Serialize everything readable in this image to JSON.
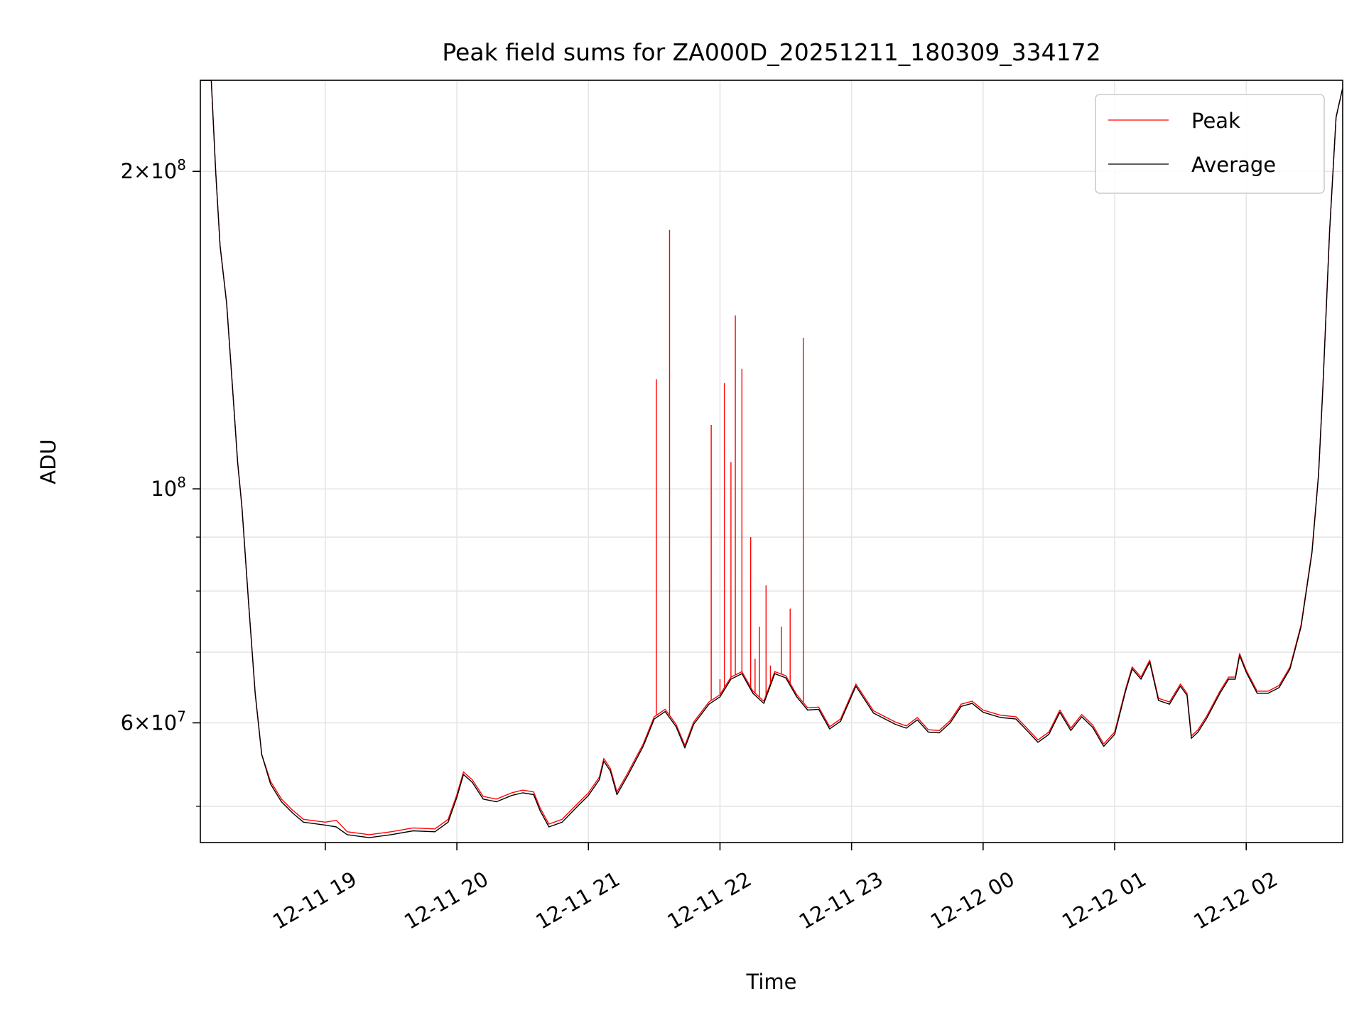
{
  "chart_data": {
    "type": "line",
    "title": "Peak field sums for ZA000D_20251211_180309_334172",
    "xlabel": "Time",
    "ylabel": "ADU",
    "y_scale": "log",
    "ylim": [
      46200000,
      244000000
    ],
    "xlim": [
      "2025-12-11 18:03",
      "2025-12-12 02:44"
    ],
    "grid": true,
    "legend_placement": "top-right",
    "x_ticks": [
      {
        "t": "2025-12-11 19:00",
        "label": "12-11 19"
      },
      {
        "t": "2025-12-11 20:00",
        "label": "12-11 20"
      },
      {
        "t": "2025-12-11 21:00",
        "label": "12-11 21"
      },
      {
        "t": "2025-12-11 22:00",
        "label": "12-11 22"
      },
      {
        "t": "2025-12-11 23:00",
        "label": "12-11 23"
      },
      {
        "t": "2025-12-12 00:00",
        "label": "12-12 00"
      },
      {
        "t": "2025-12-12 01:00",
        "label": "12-12 01"
      },
      {
        "t": "2025-12-12 02:00",
        "label": "12-12 02"
      }
    ],
    "y_major_ticks": [
      {
        "value": 60000000,
        "mantissa": "6",
        "exponent": "7"
      },
      {
        "value": 100000000,
        "mantissa": "",
        "exponent": "8"
      },
      {
        "value": 200000000,
        "mantissa": "2",
        "exponent": "8"
      }
    ],
    "y_minor_ticks": [
      50000000,
      70000000,
      80000000,
      90000000
    ],
    "series": [
      {
        "name": "Average",
        "color": "#000000",
        "points": [
          [
            "2025-12-11 18:03",
            244000000
          ],
          [
            "2025-12-11 18:08",
            244000000
          ],
          [
            "2025-12-11 18:10",
            200000000
          ],
          [
            "2025-12-11 18:12",
            170000000
          ],
          [
            "2025-12-11 18:15",
            150000000
          ],
          [
            "2025-12-11 18:18",
            122000000
          ],
          [
            "2025-12-11 18:20",
            106000000
          ],
          [
            "2025-12-11 18:22",
            96000000
          ],
          [
            "2025-12-11 18:25",
            78000000
          ],
          [
            "2025-12-11 18:28",
            64000000
          ],
          [
            "2025-12-11 18:31",
            56000000
          ],
          [
            "2025-12-11 18:35",
            52500000
          ],
          [
            "2025-12-11 18:40",
            50500000
          ],
          [
            "2025-12-11 18:45",
            49300000
          ],
          [
            "2025-12-11 18:50",
            48300000
          ],
          [
            "2025-12-11 19:00",
            48000000
          ],
          [
            "2025-12-11 19:05",
            47800000
          ],
          [
            "2025-12-11 19:10",
            47000000
          ],
          [
            "2025-12-11 19:20",
            46700000
          ],
          [
            "2025-12-11 19:30",
            47000000
          ],
          [
            "2025-12-11 19:40",
            47400000
          ],
          [
            "2025-12-11 19:50",
            47300000
          ],
          [
            "2025-12-11 19:56",
            48300000
          ],
          [
            "2025-12-11 20:00",
            51000000
          ],
          [
            "2025-12-11 20:03",
            53600000
          ],
          [
            "2025-12-11 20:07",
            52700000
          ],
          [
            "2025-12-11 20:12",
            50800000
          ],
          [
            "2025-12-11 20:18",
            50500000
          ],
          [
            "2025-12-11 20:25",
            51200000
          ],
          [
            "2025-12-11 20:30",
            51500000
          ],
          [
            "2025-12-11 20:35",
            51300000
          ],
          [
            "2025-12-11 20:38",
            49500000
          ],
          [
            "2025-12-11 20:42",
            47800000
          ],
          [
            "2025-12-11 20:48",
            48300000
          ],
          [
            "2025-12-11 20:55",
            50000000
          ],
          [
            "2025-12-11 21:00",
            51200000
          ],
          [
            "2025-12-11 21:05",
            53000000
          ],
          [
            "2025-12-11 21:07",
            55200000
          ],
          [
            "2025-12-11 21:10",
            54000000
          ],
          [
            "2025-12-11 21:13",
            51300000
          ],
          [
            "2025-12-11 21:18",
            53500000
          ],
          [
            "2025-12-11 21:25",
            57000000
          ],
          [
            "2025-12-11 21:30",
            60500000
          ],
          [
            "2025-12-11 21:35",
            61500000
          ],
          [
            "2025-12-11 21:40",
            59500000
          ],
          [
            "2025-12-11 21:44",
            56800000
          ],
          [
            "2025-12-11 21:48",
            59800000
          ],
          [
            "2025-12-11 21:55",
            62500000
          ],
          [
            "2025-12-11 22:00",
            63500000
          ],
          [
            "2025-12-11 22:05",
            66000000
          ],
          [
            "2025-12-11 22:10",
            66800000
          ],
          [
            "2025-12-11 22:15",
            64000000
          ],
          [
            "2025-12-11 22:20",
            62600000
          ],
          [
            "2025-12-11 22:25",
            66800000
          ],
          [
            "2025-12-11 22:30",
            66200000
          ],
          [
            "2025-12-11 22:35",
            63500000
          ],
          [
            "2025-12-11 22:40",
            61700000
          ],
          [
            "2025-12-11 22:45",
            61800000
          ],
          [
            "2025-12-11 22:50",
            59200000
          ],
          [
            "2025-12-11 22:55",
            60200000
          ],
          [
            "2025-12-11 23:02",
            65000000
          ],
          [
            "2025-12-11 23:10",
            61300000
          ],
          [
            "2025-12-11 23:20",
            59800000
          ],
          [
            "2025-12-11 23:25",
            59300000
          ],
          [
            "2025-12-11 23:30",
            60400000
          ],
          [
            "2025-12-11 23:35",
            58800000
          ],
          [
            "2025-12-11 23:40",
            58700000
          ],
          [
            "2025-12-11 23:45",
            60000000
          ],
          [
            "2025-12-11 23:50",
            62200000
          ],
          [
            "2025-12-11 23:55",
            62600000
          ],
          [
            "2025-12-12 00:00",
            61400000
          ],
          [
            "2025-12-12 00:08",
            60700000
          ],
          [
            "2025-12-12 00:15",
            60500000
          ],
          [
            "2025-12-12 00:20",
            59000000
          ],
          [
            "2025-12-12 00:25",
            57500000
          ],
          [
            "2025-12-12 00:30",
            58500000
          ],
          [
            "2025-12-12 00:35",
            61400000
          ],
          [
            "2025-12-12 00:40",
            59000000
          ],
          [
            "2025-12-12 00:45",
            60800000
          ],
          [
            "2025-12-12 00:50",
            59400000
          ],
          [
            "2025-12-12 00:55",
            57000000
          ],
          [
            "2025-12-12 01:00",
            58500000
          ],
          [
            "2025-12-12 01:05",
            64300000
          ],
          [
            "2025-12-12 01:08",
            67500000
          ],
          [
            "2025-12-12 01:12",
            66000000
          ],
          [
            "2025-12-12 01:16",
            68500000
          ],
          [
            "2025-12-12 01:20",
            63000000
          ],
          [
            "2025-12-12 01:25",
            62500000
          ],
          [
            "2025-12-12 01:30",
            65000000
          ],
          [
            "2025-12-12 01:33",
            63700000
          ],
          [
            "2025-12-12 01:35",
            58000000
          ],
          [
            "2025-12-12 01:38",
            58800000
          ],
          [
            "2025-12-12 01:42",
            60600000
          ],
          [
            "2025-12-12 01:48",
            64000000
          ],
          [
            "2025-12-12 01:52",
            66000000
          ],
          [
            "2025-12-12 01:55",
            66000000
          ],
          [
            "2025-12-12 01:57",
            69500000
          ],
          [
            "2025-12-12 02:00",
            67000000
          ],
          [
            "2025-12-12 02:05",
            64000000
          ],
          [
            "2025-12-12 02:10",
            64000000
          ],
          [
            "2025-12-12 02:15",
            64800000
          ],
          [
            "2025-12-12 02:20",
            67500000
          ],
          [
            "2025-12-12 02:25",
            74000000
          ],
          [
            "2025-12-12 02:30",
            87000000
          ],
          [
            "2025-12-12 02:33",
            103000000
          ],
          [
            "2025-12-12 02:35",
            125000000
          ],
          [
            "2025-12-12 02:38",
            175000000
          ],
          [
            "2025-12-12 02:41",
            225000000
          ],
          [
            "2025-12-12 02:44",
            240000000
          ]
        ]
      },
      {
        "name": "Peak",
        "color": "#ff0000",
        "points": [
          [
            "2025-12-11 18:03",
            244000000
          ],
          [
            "2025-12-11 18:08",
            244000000
          ],
          [
            "2025-12-11 18:10",
            200000000
          ],
          [
            "2025-12-11 18:12",
            170000000
          ],
          [
            "2025-12-11 18:15",
            150000000
          ],
          [
            "2025-12-11 18:18",
            122000000
          ],
          [
            "2025-12-11 18:20",
            106000000
          ],
          [
            "2025-12-11 18:22",
            96000000
          ],
          [
            "2025-12-11 18:25",
            78000000
          ],
          [
            "2025-12-11 18:28",
            64000000
          ],
          [
            "2025-12-11 18:31",
            56000000
          ],
          [
            "2025-12-11 18:35",
            52800000
          ],
          [
            "2025-12-11 18:40",
            50800000
          ],
          [
            "2025-12-11 18:45",
            49600000
          ],
          [
            "2025-12-11 18:50",
            48600000
          ],
          [
            "2025-12-11 19:00",
            48300000
          ],
          [
            "2025-12-11 19:05",
            48500000
          ],
          [
            "2025-12-11 19:10",
            47300000
          ],
          [
            "2025-12-11 19:20",
            47000000
          ],
          [
            "2025-12-11 19:30",
            47300000
          ],
          [
            "2025-12-11 19:40",
            47700000
          ],
          [
            "2025-12-11 19:50",
            47600000
          ],
          [
            "2025-12-11 19:56",
            48600000
          ],
          [
            "2025-12-11 20:00",
            51300000
          ],
          [
            "2025-12-11 20:03",
            53900000
          ],
          [
            "2025-12-11 20:07",
            53000000
          ],
          [
            "2025-12-11 20:12",
            51100000
          ],
          [
            "2025-12-11 20:18",
            50800000
          ],
          [
            "2025-12-11 20:25",
            51500000
          ],
          [
            "2025-12-11 20:30",
            51800000
          ],
          [
            "2025-12-11 20:35",
            51600000
          ],
          [
            "2025-12-11 20:38",
            49800000
          ],
          [
            "2025-12-11 20:42",
            48100000
          ],
          [
            "2025-12-11 20:48",
            48600000
          ],
          [
            "2025-12-11 20:55",
            50300000
          ],
          [
            "2025-12-11 21:00",
            51500000
          ],
          [
            "2025-12-11 21:05",
            53300000
          ],
          [
            "2025-12-11 21:07",
            55500000
          ],
          [
            "2025-12-11 21:10",
            54300000
          ],
          [
            "2025-12-11 21:13",
            51600000
          ],
          [
            "2025-12-11 21:18",
            53800000
          ],
          [
            "2025-12-11 21:25",
            57300000
          ],
          [
            "2025-12-11 21:30",
            60800000
          ],
          [
            "2025-12-11 21:35",
            61800000
          ],
          [
            "2025-12-11 21:40",
            59800000
          ],
          [
            "2025-12-11 21:44",
            57100000
          ],
          [
            "2025-12-11 21:48",
            60100000
          ],
          [
            "2025-12-11 21:55",
            62800000
          ],
          [
            "2025-12-11 22:00",
            63800000
          ],
          [
            "2025-12-11 22:05",
            66300000
          ],
          [
            "2025-12-11 22:10",
            67100000
          ],
          [
            "2025-12-11 22:15",
            64300000
          ],
          [
            "2025-12-11 22:20",
            62900000
          ],
          [
            "2025-12-11 22:25",
            67100000
          ],
          [
            "2025-12-11 22:30",
            66500000
          ],
          [
            "2025-12-11 22:35",
            63800000
          ],
          [
            "2025-12-11 22:40",
            62000000
          ],
          [
            "2025-12-11 22:45",
            62100000
          ],
          [
            "2025-12-11 22:50",
            59500000
          ],
          [
            "2025-12-11 22:55",
            60500000
          ],
          [
            "2025-12-11 23:02",
            65300000
          ],
          [
            "2025-12-11 23:10",
            61600000
          ],
          [
            "2025-12-11 23:20",
            60100000
          ],
          [
            "2025-12-11 23:25",
            59600000
          ],
          [
            "2025-12-11 23:30",
            60700000
          ],
          [
            "2025-12-11 23:35",
            59100000
          ],
          [
            "2025-12-11 23:40",
            59000000
          ],
          [
            "2025-12-11 23:45",
            60300000
          ],
          [
            "2025-12-11 23:50",
            62500000
          ],
          [
            "2025-12-11 23:55",
            62900000
          ],
          [
            "2025-12-12 00:00",
            61700000
          ],
          [
            "2025-12-12 00:08",
            61000000
          ],
          [
            "2025-12-12 00:15",
            60800000
          ],
          [
            "2025-12-12 00:20",
            59300000
          ],
          [
            "2025-12-12 00:25",
            57800000
          ],
          [
            "2025-12-12 00:30",
            58800000
          ],
          [
            "2025-12-12 00:35",
            61700000
          ],
          [
            "2025-12-12 00:40",
            59300000
          ],
          [
            "2025-12-12 00:45",
            61100000
          ],
          [
            "2025-12-12 00:50",
            59700000
          ],
          [
            "2025-12-12 00:55",
            57300000
          ],
          [
            "2025-12-12 01:00",
            58800000
          ],
          [
            "2025-12-12 01:05",
            64600000
          ],
          [
            "2025-12-12 01:08",
            67800000
          ],
          [
            "2025-12-12 01:12",
            66300000
          ],
          [
            "2025-12-12 01:16",
            68800000
          ],
          [
            "2025-12-12 01:20",
            63300000
          ],
          [
            "2025-12-12 01:25",
            62800000
          ],
          [
            "2025-12-12 01:30",
            65300000
          ],
          [
            "2025-12-12 01:33",
            64000000
          ],
          [
            "2025-12-12 01:35",
            58300000
          ],
          [
            "2025-12-12 01:38",
            59100000
          ],
          [
            "2025-12-12 01:42",
            60900000
          ],
          [
            "2025-12-12 01:48",
            64300000
          ],
          [
            "2025-12-12 01:52",
            66300000
          ],
          [
            "2025-12-12 01:55",
            66300000
          ],
          [
            "2025-12-12 01:57",
            69800000
          ],
          [
            "2025-12-12 02:00",
            67300000
          ],
          [
            "2025-12-12 02:05",
            64300000
          ],
          [
            "2025-12-12 02:10",
            64300000
          ],
          [
            "2025-12-12 02:15",
            65100000
          ],
          [
            "2025-12-12 02:20",
            67800000
          ],
          [
            "2025-12-12 02:25",
            74300000
          ],
          [
            "2025-12-12 02:30",
            87300000
          ],
          [
            "2025-12-12 02:33",
            103300000
          ],
          [
            "2025-12-12 02:35",
            125300000
          ],
          [
            "2025-12-12 02:38",
            175300000
          ],
          [
            "2025-12-12 02:41",
            225300000
          ],
          [
            "2025-12-12 02:44",
            240000000
          ]
        ],
        "spikes": [
          [
            "2025-12-11 21:31",
            127000000
          ],
          [
            "2025-12-11 21:37",
            176000000
          ],
          [
            "2025-12-11 21:56",
            115000000
          ],
          [
            "2025-12-11 22:00",
            66000000
          ],
          [
            "2025-12-11 22:02",
            126000000
          ],
          [
            "2025-12-11 22:05",
            106000000
          ],
          [
            "2025-12-11 22:07",
            146000000
          ],
          [
            "2025-12-11 22:10",
            130000000
          ],
          [
            "2025-12-11 22:14",
            90000000
          ],
          [
            "2025-12-11 22:16",
            69000000
          ],
          [
            "2025-12-11 22:18",
            74000000
          ],
          [
            "2025-12-11 22:21",
            81000000
          ],
          [
            "2025-12-11 22:23",
            68000000
          ],
          [
            "2025-12-11 22:28",
            74000000
          ],
          [
            "2025-12-11 22:32",
            77000000
          ],
          [
            "2025-12-11 22:38",
            139000000
          ]
        ]
      }
    ]
  }
}
